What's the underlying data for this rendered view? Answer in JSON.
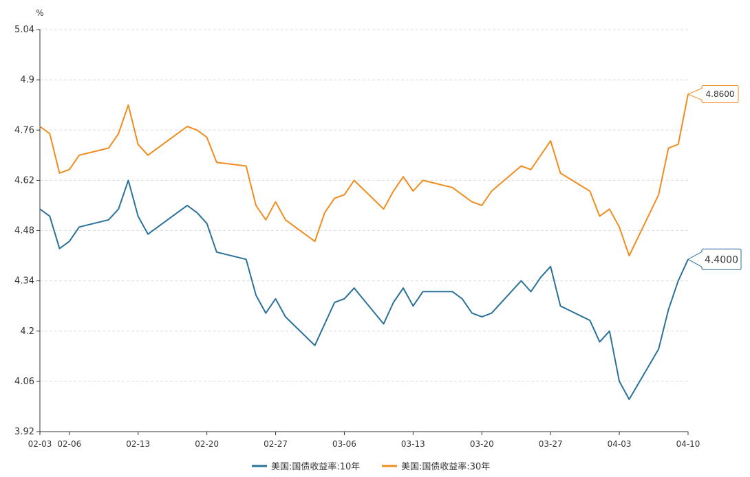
{
  "chart_data": {
    "type": "line",
    "unit": "%",
    "y_ticks": [
      "5.04",
      "4.9",
      "4.76",
      "4.62",
      "4.48",
      "4.34",
      "4.2",
      "4.06",
      "3.92"
    ],
    "y_range": [
      3.92,
      5.04
    ],
    "x_tick_labels": [
      "02-03",
      "02-06",
      "02-13",
      "02-20",
      "02-27",
      "03-06",
      "03-13",
      "03-20",
      "03-27",
      "04-03",
      "04-10"
    ],
    "grid": {
      "horizontal": true,
      "dashed": true
    },
    "legend_position": "bottom-center",
    "series": [
      {
        "name": "美国:国债收益率:10年",
        "color": "#2a7199",
        "end_label": "4.4000",
        "points": [
          [
            "02-03",
            4.54
          ],
          [
            "02-04",
            4.52
          ],
          [
            "02-05",
            4.43
          ],
          [
            "02-06",
            4.45
          ],
          [
            "02-07",
            4.49
          ],
          [
            "02-10",
            4.51
          ],
          [
            "02-11",
            4.54
          ],
          [
            "02-12",
            4.62
          ],
          [
            "02-13",
            4.52
          ],
          [
            "02-14",
            4.47
          ],
          [
            "02-18",
            4.55
          ],
          [
            "02-19",
            4.53
          ],
          [
            "02-20",
            4.5
          ],
          [
            "02-21",
            4.42
          ],
          [
            "02-24",
            4.4
          ],
          [
            "02-25",
            4.3
          ],
          [
            "02-26",
            4.25
          ],
          [
            "02-27",
            4.29
          ],
          [
            "02-28",
            4.24
          ],
          [
            "03-03",
            4.16
          ],
          [
            "03-04",
            4.22
          ],
          [
            "03-05",
            4.28
          ],
          [
            "03-06",
            4.29
          ],
          [
            "03-07",
            4.32
          ],
          [
            "03-10",
            4.22
          ],
          [
            "03-11",
            4.28
          ],
          [
            "03-12",
            4.32
          ],
          [
            "03-13",
            4.27
          ],
          [
            "03-14",
            4.31
          ],
          [
            "03-17",
            4.31
          ],
          [
            "03-18",
            4.29
          ],
          [
            "03-19",
            4.25
          ],
          [
            "03-20",
            4.24
          ],
          [
            "03-21",
            4.25
          ],
          [
            "03-24",
            4.34
          ],
          [
            "03-25",
            4.31
          ],
          [
            "03-26",
            4.35
          ],
          [
            "03-27",
            4.38
          ],
          [
            "03-28",
            4.27
          ],
          [
            "03-31",
            4.23
          ],
          [
            "04-01",
            4.17
          ],
          [
            "04-02",
            4.2
          ],
          [
            "04-03",
            4.06
          ],
          [
            "04-04",
            4.01
          ],
          [
            "04-07",
            4.15
          ],
          [
            "04-08",
            4.26
          ],
          [
            "04-09",
            4.34
          ],
          [
            "04-10",
            4.4
          ]
        ]
      },
      {
        "name": "美国:国债收益率:30年",
        "color": "#f08c1e",
        "end_label": "4.8600",
        "points": [
          [
            "02-03",
            4.77
          ],
          [
            "02-04",
            4.75
          ],
          [
            "02-05",
            4.64
          ],
          [
            "02-06",
            4.65
          ],
          [
            "02-07",
            4.69
          ],
          [
            "02-10",
            4.71
          ],
          [
            "02-11",
            4.75
          ],
          [
            "02-12",
            4.83
          ],
          [
            "02-13",
            4.72
          ],
          [
            "02-14",
            4.69
          ],
          [
            "02-18",
            4.77
          ],
          [
            "02-19",
            4.76
          ],
          [
            "02-20",
            4.74
          ],
          [
            "02-21",
            4.67
          ],
          [
            "02-24",
            4.66
          ],
          [
            "02-25",
            4.55
          ],
          [
            "02-26",
            4.51
          ],
          [
            "02-27",
            4.56
          ],
          [
            "02-28",
            4.51
          ],
          [
            "03-03",
            4.45
          ],
          [
            "03-04",
            4.53
          ],
          [
            "03-05",
            4.57
          ],
          [
            "03-06",
            4.58
          ],
          [
            "03-07",
            4.62
          ],
          [
            "03-10",
            4.54
          ],
          [
            "03-11",
            4.59
          ],
          [
            "03-12",
            4.63
          ],
          [
            "03-13",
            4.59
          ],
          [
            "03-14",
            4.62
          ],
          [
            "03-17",
            4.6
          ],
          [
            "03-18",
            4.58
          ],
          [
            "03-19",
            4.56
          ],
          [
            "03-20",
            4.55
          ],
          [
            "03-21",
            4.59
          ],
          [
            "03-24",
            4.66
          ],
          [
            "03-25",
            4.65
          ],
          [
            "03-26",
            4.69
          ],
          [
            "03-27",
            4.73
          ],
          [
            "03-28",
            4.64
          ],
          [
            "03-31",
            4.59
          ],
          [
            "04-01",
            4.52
          ],
          [
            "04-02",
            4.54
          ],
          [
            "04-03",
            4.49
          ],
          [
            "04-04",
            4.41
          ],
          [
            "04-07",
            4.58
          ],
          [
            "04-08",
            4.71
          ],
          [
            "04-09",
            4.72
          ],
          [
            "04-10",
            4.86
          ]
        ]
      }
    ]
  }
}
